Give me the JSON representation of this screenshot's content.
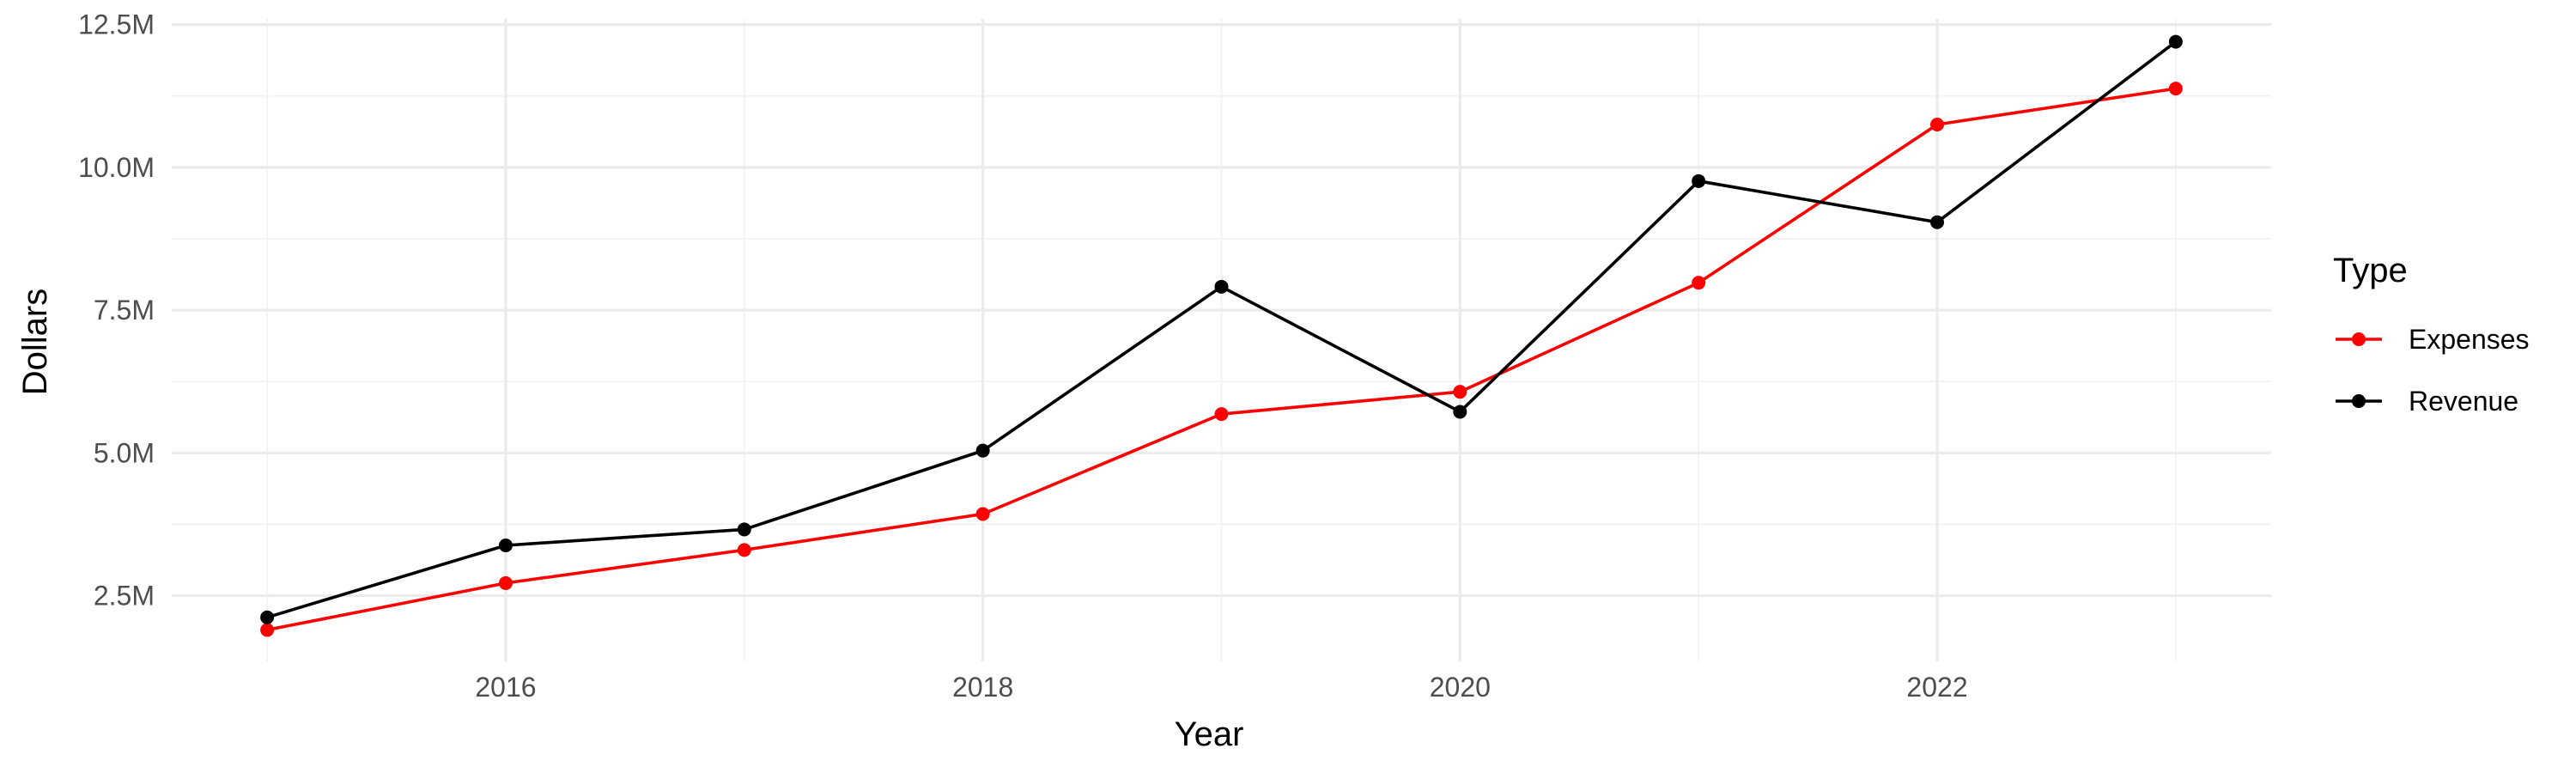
{
  "chart_data": {
    "type": "line",
    "xlabel": "Year",
    "ylabel": "Dollars",
    "x": [
      2015,
      2016,
      2017,
      2018,
      2019,
      2020,
      2021,
      2022,
      2023
    ],
    "xticks": [
      2016,
      2018,
      2020,
      2022
    ],
    "xlim": [
      2014.6,
      2023.4
    ],
    "yticks": [
      2500000,
      5000000,
      7500000,
      10000000,
      12500000
    ],
    "ytick_labels": [
      "2.5M",
      "5.0M",
      "7.5M",
      "10.0M",
      "12.5M"
    ],
    "ylim": [
      1350000,
      12600000
    ],
    "grid": true,
    "legend": {
      "title": "Type",
      "position": "right"
    },
    "series": [
      {
        "name": "Expenses",
        "color": "#ff0000",
        "values": [
          1900000,
          2720000,
          3300000,
          3930000,
          5680000,
          6070000,
          7980000,
          10750000,
          11380000
        ]
      },
      {
        "name": "Revenue",
        "color": "#000000",
        "values": [
          2120000,
          3380000,
          3660000,
          5040000,
          7910000,
          5720000,
          9760000,
          9040000,
          12200000
        ]
      }
    ]
  }
}
